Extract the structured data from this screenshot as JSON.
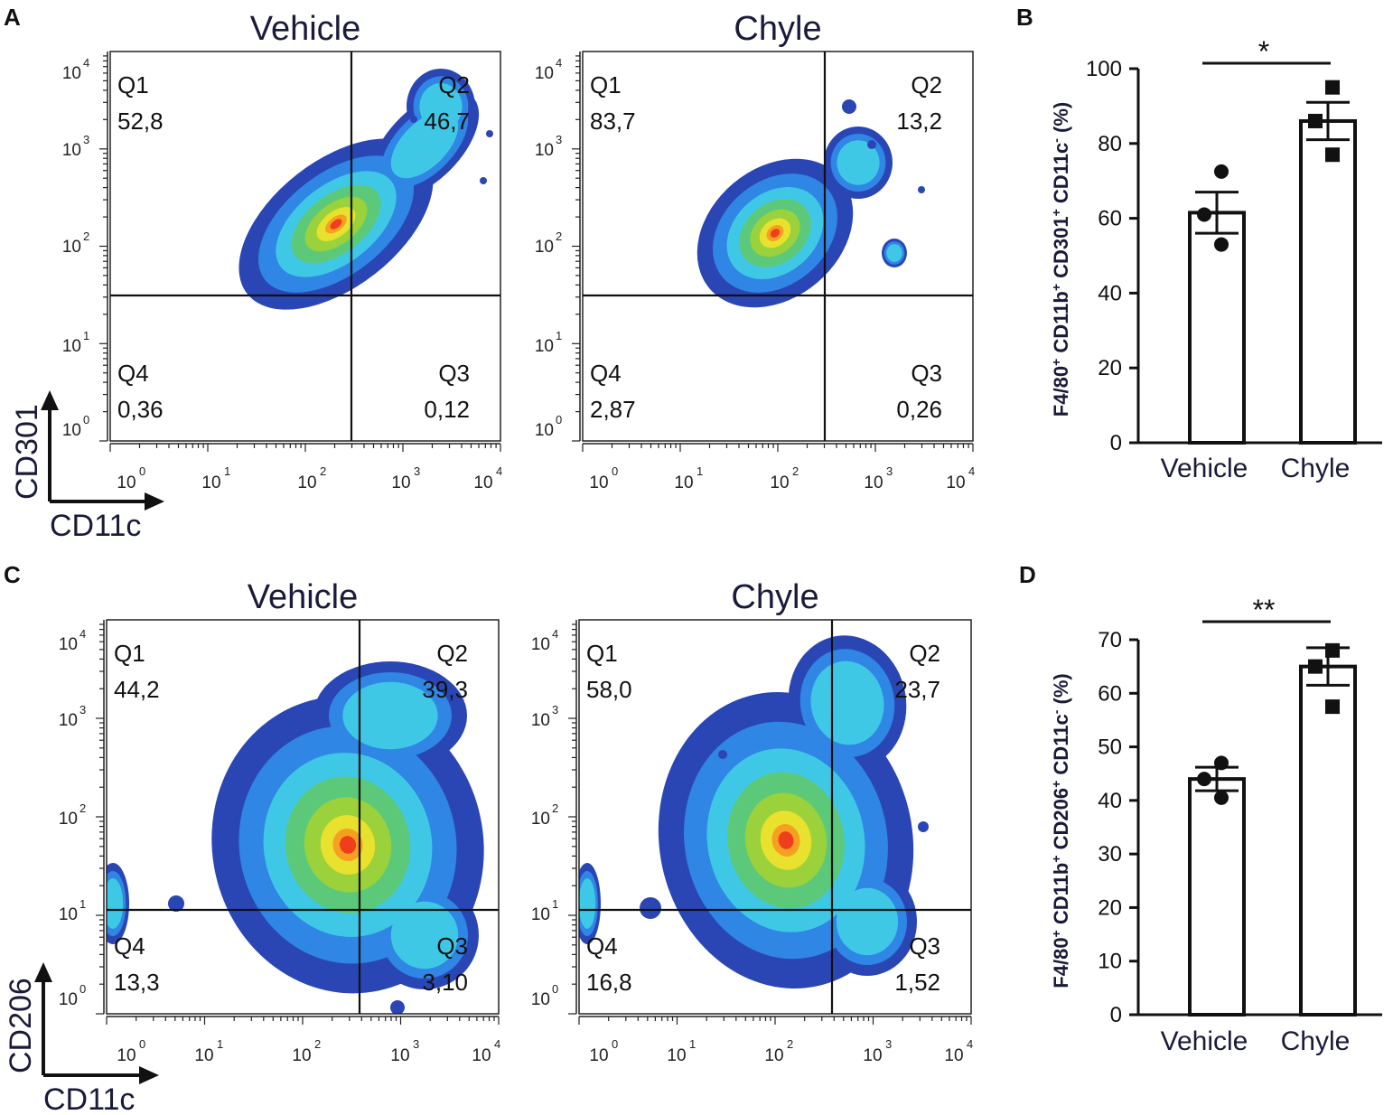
{
  "panels": {
    "a": "A",
    "b": "B",
    "c": "C",
    "d": "D"
  },
  "chart_data": [
    {
      "type": "density-scatter",
      "panel": "A",
      "title": "Vehicle",
      "xlabel": "CD11c",
      "ylabel": "CD301",
      "x_scale": "log",
      "y_scale": "log",
      "x_ticks": [
        "0",
        "1",
        "2",
        "3",
        "4"
      ],
      "y_ticks": [
        "0",
        "1",
        "2",
        "3",
        "4"
      ],
      "tick_base": "10",
      "quadrants": [
        {
          "name": "Q1",
          "value": "52,8"
        },
        {
          "name": "Q2",
          "value": "46,7"
        },
        {
          "name": "Q3",
          "value": "0,12"
        },
        {
          "name": "Q4",
          "value": "0,36"
        }
      ]
    },
    {
      "type": "density-scatter",
      "panel": "A",
      "title": "Chyle",
      "xlabel": "CD11c",
      "ylabel": "CD301",
      "x_scale": "log",
      "y_scale": "log",
      "x_ticks": [
        "0",
        "1",
        "2",
        "3",
        "4"
      ],
      "y_ticks": [
        "0",
        "1",
        "2",
        "3",
        "4"
      ],
      "tick_base": "10",
      "quadrants": [
        {
          "name": "Q1",
          "value": "83,7"
        },
        {
          "name": "Q2",
          "value": "13,2"
        },
        {
          "name": "Q3",
          "value": "0,26"
        },
        {
          "name": "Q4",
          "value": "2,87"
        }
      ]
    },
    {
      "type": "bar",
      "panel": "B",
      "categories": [
        "Vehicle",
        "Chyle"
      ],
      "values": [
        61.5,
        86
      ],
      "sem": [
        5.5,
        5
      ],
      "points": [
        [
          72.5,
          61,
          53
        ],
        [
          95,
          86,
          77
        ]
      ],
      "ylabel_parts": [
        "F4/80",
        "+",
        " CD11b",
        "+",
        " CD301",
        "+",
        " CD11c",
        "-",
        " (%)"
      ],
      "ylim": [
        0,
        100
      ],
      "yticks": [
        "0",
        "20",
        "40",
        "60",
        "80",
        "100"
      ],
      "significance": "*"
    },
    {
      "type": "density-scatter",
      "panel": "C",
      "title": "Vehicle",
      "xlabel": "CD11c",
      "ylabel": "CD206",
      "x_scale": "log",
      "y_scale": "log",
      "x_ticks": [
        "0",
        "1",
        "2",
        "3",
        "4"
      ],
      "y_ticks": [
        "0",
        "1",
        "2",
        "3",
        "4"
      ],
      "tick_base": "10",
      "quadrants": [
        {
          "name": "Q1",
          "value": "44,2"
        },
        {
          "name": "Q2",
          "value": "39,3"
        },
        {
          "name": "Q3",
          "value": "3,10"
        },
        {
          "name": "Q4",
          "value": "13,3"
        }
      ]
    },
    {
      "type": "density-scatter",
      "panel": "C",
      "title": "Chyle",
      "xlabel": "CD11c",
      "ylabel": "CD206",
      "x_scale": "log",
      "y_scale": "log",
      "x_ticks": [
        "0",
        "1",
        "2",
        "3",
        "4"
      ],
      "y_ticks": [
        "0",
        "1",
        "2",
        "3",
        "4"
      ],
      "tick_base": "10",
      "quadrants": [
        {
          "name": "Q1",
          "value": "58,0"
        },
        {
          "name": "Q2",
          "value": "23,7"
        },
        {
          "name": "Q3",
          "value": "1,52"
        },
        {
          "name": "Q4",
          "value": "16,8"
        }
      ]
    },
    {
      "type": "bar",
      "panel": "D",
      "categories": [
        "Vehicle",
        "Chyle"
      ],
      "values": [
        44,
        65
      ],
      "sem": [
        2.2,
        3.5
      ],
      "points": [
        [
          47,
          44,
          40.5
        ],
        [
          68,
          65,
          57.5
        ]
      ],
      "ylabel_parts": [
        "F4/80",
        "+",
        " CD11b",
        "+",
        " CD206",
        "+",
        " CD11c",
        "-",
        " (%)"
      ],
      "ylim": [
        0,
        70
      ],
      "yticks": [
        "0",
        "10",
        "20",
        "30",
        "40",
        "50",
        "60",
        "70"
      ],
      "significance": "**"
    }
  ]
}
